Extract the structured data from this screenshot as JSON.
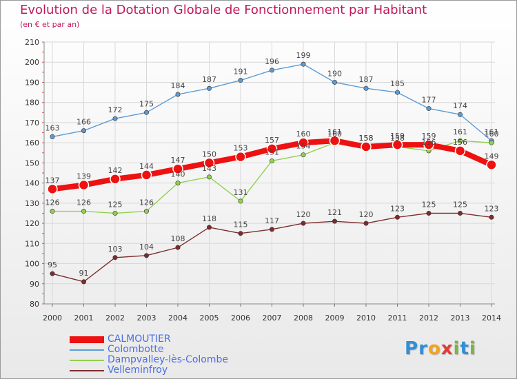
{
  "header": {
    "title": "Evolution de la Dotation Globale de Fonctionnement par Habitant",
    "subtitle": "(en € et par an)"
  },
  "logo": {
    "text": "Proxiti",
    "letters": [
      "P",
      "r",
      "o",
      "x",
      "i",
      "t",
      "i"
    ],
    "letter_colors": [
      "#2f8fd6",
      "#2f8fd6",
      "#f5a31a",
      "#e53935",
      "#7cb342",
      "#2f8fd6",
      "#7cb342"
    ]
  },
  "chart_data": {
    "type": "line",
    "title": "Evolution de la Dotation Globale de Fonctionnement par Habitant",
    "subtitle": "(en € et par an)",
    "x": [
      "2000",
      "2001",
      "2002",
      "2003",
      "2004",
      "2005",
      "2006",
      "2007",
      "2008",
      "2009",
      "2010",
      "2011",
      "2012",
      "2013",
      "2014"
    ],
    "ylim": [
      80,
      210
    ],
    "yticks": [
      80,
      90,
      100,
      110,
      120,
      130,
      140,
      150,
      160,
      170,
      180,
      190,
      200,
      210
    ],
    "grid": true,
    "legend_position": "bottom-left",
    "series": [
      {
        "name": "CALMOUTIER",
        "color": "#ee1111",
        "emphasis": "thick",
        "values": [
          137,
          139,
          142,
          144,
          147,
          150,
          153,
          157,
          160,
          161,
          158,
          159,
          159,
          156,
          149
        ]
      },
      {
        "name": "Colombotte",
        "color": "#5b9bd5",
        "values": [
          163,
          166,
          172,
          175,
          184,
          187,
          191,
          196,
          199,
          190,
          187,
          185,
          177,
          174,
          161
        ]
      },
      {
        "name": "Dampvalley-lès-Colombe",
        "color": "#92d050",
        "values": [
          126,
          126,
          125,
          126,
          140,
          143,
          131,
          151,
          154,
          160,
          158,
          158,
          156,
          161,
          160
        ]
      },
      {
        "name": "Velleminfroy",
        "color": "#7b2d2d",
        "values": [
          95,
          91,
          103,
          104,
          108,
          118,
          115,
          117,
          120,
          121,
          120,
          123,
          125,
          125,
          123
        ]
      }
    ]
  }
}
